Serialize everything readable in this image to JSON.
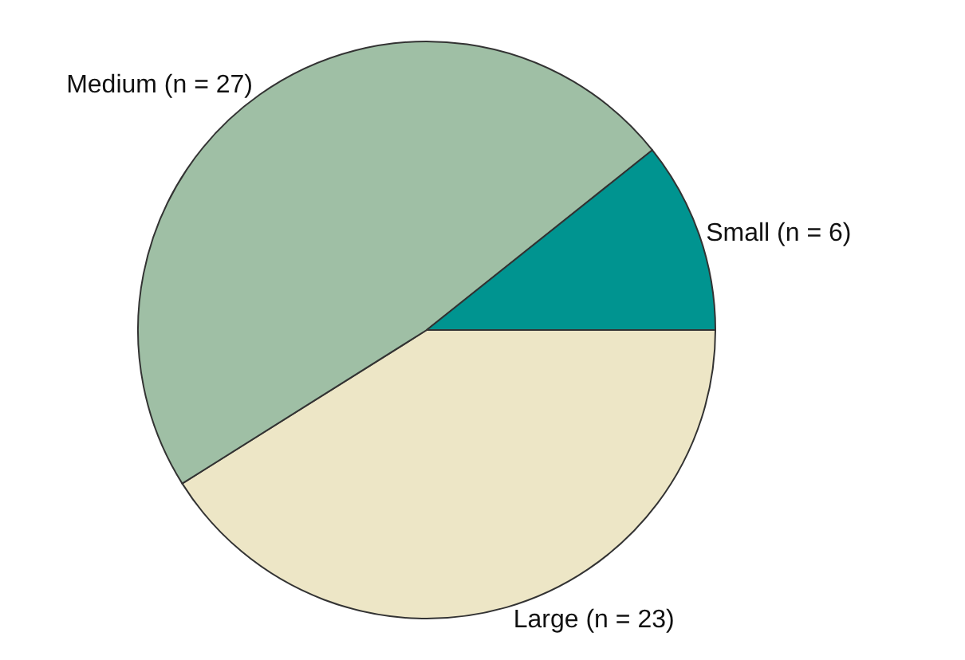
{
  "chart_data": {
    "type": "pie",
    "categories": [
      "Large (n = 23)",
      "Medium (n = 27)",
      "Small (n = 6)"
    ],
    "values": [
      23,
      27,
      6
    ],
    "colors": [
      "#ede6c6",
      "#9fbfa5",
      "#009490"
    ],
    "legend": false
  }
}
